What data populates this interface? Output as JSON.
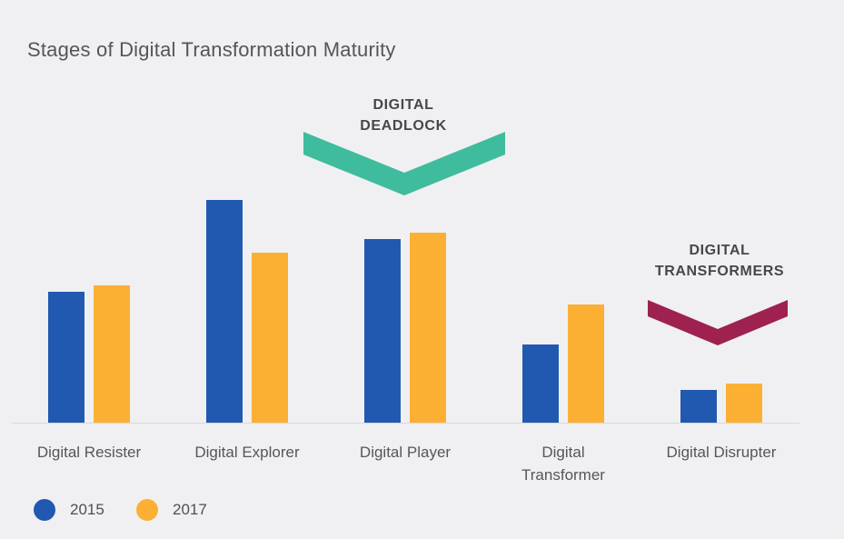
{
  "title": "Stages of Digital Transformation Maturity",
  "annotations": {
    "deadlock": {
      "line1": "DIGITAL",
      "line2": "DEADLOCK",
      "color": "#3EBC9D"
    },
    "transformers": {
      "line1": "DIGITAL",
      "line2": "TRANSFORMERS",
      "color": "#9E2150"
    }
  },
  "chart_data": {
    "type": "bar",
    "title": "Stages of Digital Transformation Maturity",
    "categories": [
      "Digital Resister",
      "Digital Explorer",
      "Digital Player",
      "Digital Transformer",
      "Digital Disrupter"
    ],
    "category_label_lines": [
      [
        "Digital Resister"
      ],
      [
        "Digital Explorer"
      ],
      [
        "Digital Player"
      ],
      [
        "Digital",
        "Transformer"
      ],
      [
        "Digital Disrupter"
      ]
    ],
    "series": [
      {
        "name": "2015",
        "color": "#2159B0",
        "values": [
          20,
          34,
          28,
          12,
          5
        ]
      },
      {
        "name": "2017",
        "color": "#FBB033",
        "values": [
          21,
          26,
          29,
          18,
          6
        ]
      }
    ],
    "value_axis_shown": false,
    "values_are_estimates": true,
    "ylim": [
      0,
      36
    ],
    "grid": false,
    "legend_position": "bottom-left",
    "annotations": [
      {
        "text": "DIGITAL DEADLOCK",
        "target": "over Digital Explorer / Digital Player",
        "color": "#3EBC9D"
      },
      {
        "text": "DIGITAL TRANSFORMERS",
        "target": "over Digital Transformer / Digital Disrupter",
        "color": "#9E2150"
      }
    ]
  }
}
